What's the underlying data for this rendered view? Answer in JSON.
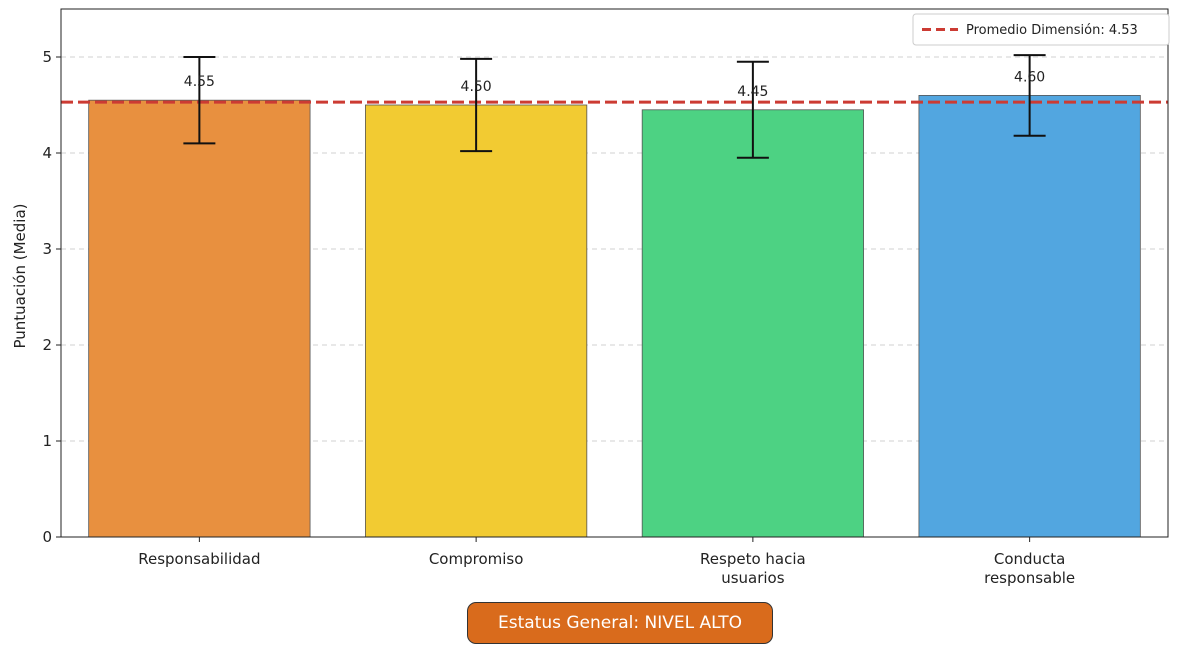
{
  "chart_data": {
    "type": "bar",
    "categories": [
      "Responsabilidad",
      "Compromiso",
      "Respeto hacia usuarios",
      "Conducta responsable"
    ],
    "category_lines": [
      [
        "Responsabilidad"
      ],
      [
        "Compromiso"
      ],
      [
        "Respeto hacia",
        "usuarios"
      ],
      [
        "Conducta",
        "responsable"
      ]
    ],
    "values": [
      4.55,
      4.5,
      4.45,
      4.6
    ],
    "value_labels": [
      "4.55",
      "4.50",
      "4.45",
      "4.60"
    ],
    "error_low": [
      4.1,
      4.02,
      3.95,
      4.18
    ],
    "error_high": [
      5.0,
      4.98,
      4.95,
      5.02
    ],
    "colors": [
      "#e8903f",
      "#f2cb32",
      "#4dd283",
      "#52a6e0"
    ],
    "ylabel": "Puntuación (Media)",
    "xlabel": "",
    "ylim": [
      0,
      5.5
    ],
    "yticks": [
      0,
      1,
      2,
      3,
      4,
      5
    ],
    "grid": true,
    "reference_line": {
      "value": 4.53,
      "label": "Promedio Dimensión: 4.53",
      "color": "#cc3b33",
      "style": "dashed"
    },
    "legend_position": "top-right"
  },
  "status": {
    "text": "Estatus General: NIVEL ALTO",
    "color": "#d96b1c"
  }
}
